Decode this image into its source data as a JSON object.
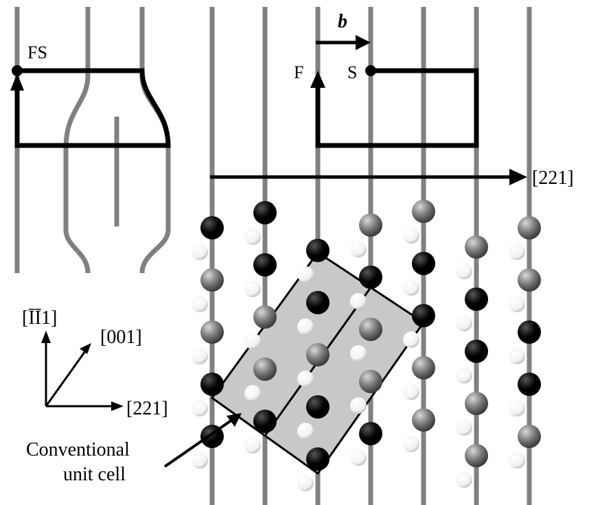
{
  "labels": {
    "fs": "FS",
    "f": "F",
    "s": "S",
    "burgers": "b",
    "direction_top": "[221]",
    "axis_up": "[ĪĪ1]",
    "axis_diag": "[001]",
    "axis_right": "[221]",
    "cell_line1": "Conventional",
    "cell_line2": "unit cell"
  },
  "colors": {
    "plane": "#808080",
    "circuit": "#000000",
    "cell_fill": "#c8c8c8",
    "atom_black": "#000000",
    "atom_gray": "#7a7a7a",
    "atom_white": "#ffffff"
  },
  "atoms": {
    "columns": [
      {
        "large": [
          "black",
          "gray",
          "gray",
          "black",
          "black"
        ],
        "small": 5
      },
      {
        "large": [
          "black",
          "black",
          "gray",
          "gray",
          "black"
        ],
        "small": 5
      },
      {
        "large": [
          "black",
          "black",
          "gray",
          "black",
          "black"
        ],
        "small": 5
      },
      {
        "large": [
          "gray",
          "black",
          "gray",
          "gray",
          "black"
        ],
        "small": 5
      },
      {
        "large": [
          "gray",
          "black",
          "black",
          "gray",
          "gray"
        ],
        "small": 5
      },
      {
        "large": [
          "gray",
          "black",
          "black",
          "gray",
          "gray"
        ],
        "small": 5
      },
      {
        "large": [
          "gray",
          "gray",
          "black",
          "black",
          "gray"
        ],
        "small": 5
      }
    ]
  }
}
